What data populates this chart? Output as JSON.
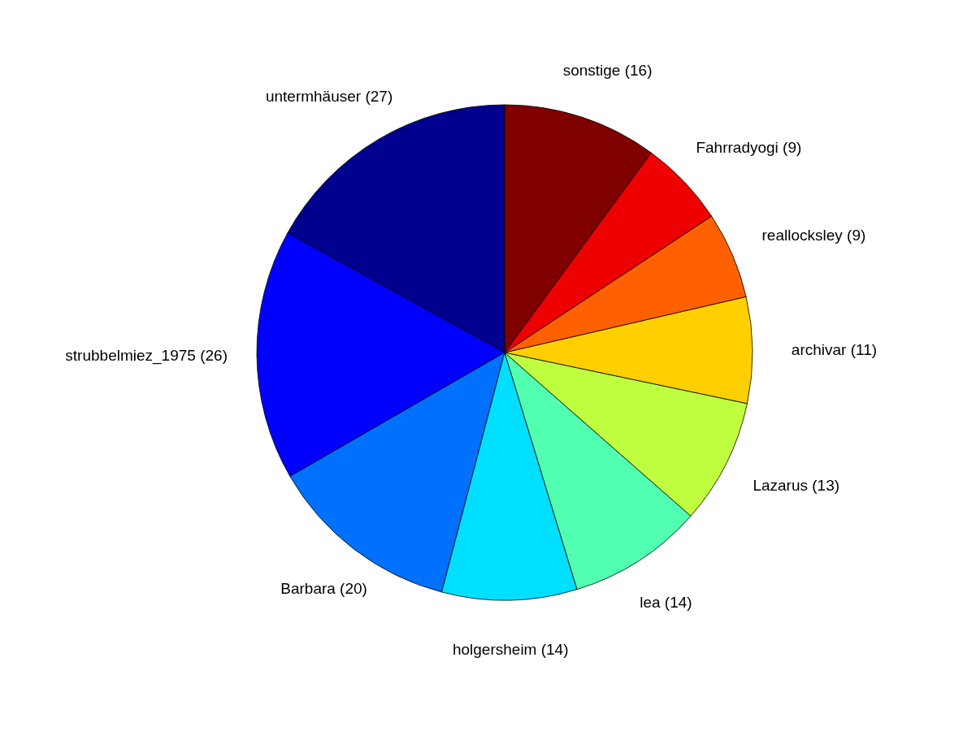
{
  "chart_data": {
    "type": "pie",
    "categories": [
      "untermhäuser (27)",
      "strubbelmiez_1975 (26)",
      "Barbara (20)",
      "holgersheim (14)",
      "lea (14)",
      "Lazarus (13)",
      "archivar (11)",
      "reallocksley (9)",
      "Fahrradyogi (9)",
      "sonstige (16)"
    ],
    "values": [
      27,
      26,
      20,
      14,
      14,
      13,
      11,
      9,
      9,
      16
    ],
    "colors": [
      "#00008f",
      "#0000ff",
      "#0070ff",
      "#00dfff",
      "#50ffaf",
      "#bfff40",
      "#ffcf00",
      "#ff6000",
      "#ef0000",
      "#800000"
    ]
  }
}
